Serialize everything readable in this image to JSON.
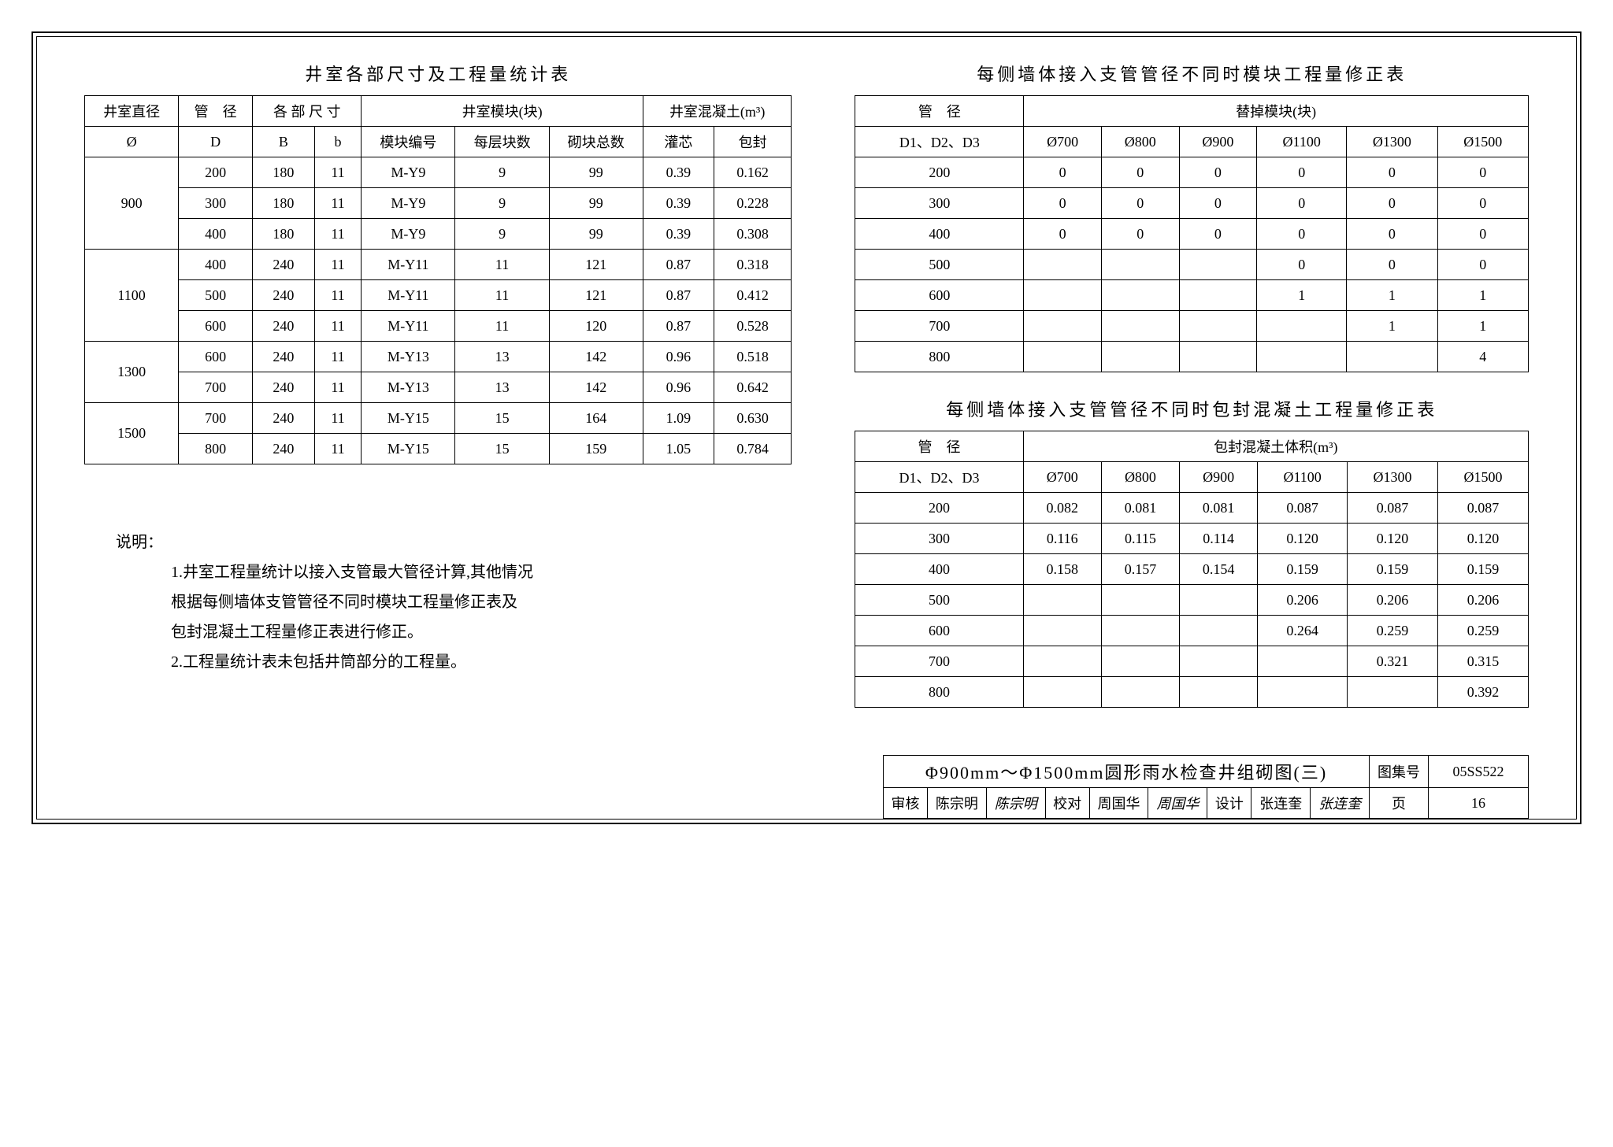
{
  "table1": {
    "title": "井室各部尺寸及工程量统计表",
    "headers": {
      "h1": "井室直径",
      "h2": "管　径",
      "h3": "各 部 尺 寸",
      "h4": "井室模块(块)",
      "h5": "井室混凝土(m³)",
      "r2c1": "Ø",
      "r2c2": "D",
      "r2c3": "B",
      "r2c4": "b",
      "r2c5": "模块编号",
      "r2c6": "每层块数",
      "r2c7": "砌块总数",
      "r2c8": "灌芯",
      "r2c9": "包封"
    },
    "rows": [
      {
        "phi": "900",
        "D": "200",
        "B": "180",
        "b": "11",
        "code": "M-Y9",
        "per": "9",
        "total": "99",
        "gx": "0.39",
        "bf": "0.162",
        "rs": 3
      },
      {
        "phi": "",
        "D": "300",
        "B": "180",
        "b": "11",
        "code": "M-Y9",
        "per": "9",
        "total": "99",
        "gx": "0.39",
        "bf": "0.228"
      },
      {
        "phi": "",
        "D": "400",
        "B": "180",
        "b": "11",
        "code": "M-Y9",
        "per": "9",
        "total": "99",
        "gx": "0.39",
        "bf": "0.308"
      },
      {
        "phi": "1100",
        "D": "400",
        "B": "240",
        "b": "11",
        "code": "M-Y11",
        "per": "11",
        "total": "121",
        "gx": "0.87",
        "bf": "0.318",
        "rs": 3
      },
      {
        "phi": "",
        "D": "500",
        "B": "240",
        "b": "11",
        "code": "M-Y11",
        "per": "11",
        "total": "121",
        "gx": "0.87",
        "bf": "0.412"
      },
      {
        "phi": "",
        "D": "600",
        "B": "240",
        "b": "11",
        "code": "M-Y11",
        "per": "11",
        "total": "120",
        "gx": "0.87",
        "bf": "0.528"
      },
      {
        "phi": "1300",
        "D": "600",
        "B": "240",
        "b": "11",
        "code": "M-Y13",
        "per": "13",
        "total": "142",
        "gx": "0.96",
        "bf": "0.518",
        "rs": 2
      },
      {
        "phi": "",
        "D": "700",
        "B": "240",
        "b": "11",
        "code": "M-Y13",
        "per": "13",
        "total": "142",
        "gx": "0.96",
        "bf": "0.642"
      },
      {
        "phi": "1500",
        "D": "700",
        "B": "240",
        "b": "11",
        "code": "M-Y15",
        "per": "15",
        "total": "164",
        "gx": "1.09",
        "bf": "0.630",
        "rs": 2
      },
      {
        "phi": "",
        "D": "800",
        "B": "240",
        "b": "11",
        "code": "M-Y15",
        "per": "15",
        "total": "159",
        "gx": "1.05",
        "bf": "0.784"
      }
    ]
  },
  "table2": {
    "title": "每侧墙体接入支管管径不同时模块工程量修正表",
    "headers": {
      "h1": "管　径",
      "h2": "替掉模块(块)",
      "sub": "D1、D2、D3",
      "cols": [
        "Ø700",
        "Ø800",
        "Ø900",
        "Ø1100",
        "Ø1300",
        "Ø1500"
      ]
    },
    "rows": [
      {
        "d": "200",
        "v": [
          "0",
          "0",
          "0",
          "0",
          "0",
          "0"
        ]
      },
      {
        "d": "300",
        "v": [
          "0",
          "0",
          "0",
          "0",
          "0",
          "0"
        ]
      },
      {
        "d": "400",
        "v": [
          "0",
          "0",
          "0",
          "0",
          "0",
          "0"
        ]
      },
      {
        "d": "500",
        "v": [
          "",
          "",
          "",
          "0",
          "0",
          "0"
        ]
      },
      {
        "d": "600",
        "v": [
          "",
          "",
          "",
          "1",
          "1",
          "1"
        ]
      },
      {
        "d": "700",
        "v": [
          "",
          "",
          "",
          "",
          "1",
          "1"
        ]
      },
      {
        "d": "800",
        "v": [
          "",
          "",
          "",
          "",
          "",
          "4"
        ]
      }
    ]
  },
  "table3": {
    "title": "每侧墙体接入支管管径不同时包封混凝土工程量修正表",
    "headers": {
      "h1": "管　径",
      "h2": "包封混凝土体积(m³)",
      "sub": "D1、D2、D3",
      "cols": [
        "Ø700",
        "Ø800",
        "Ø900",
        "Ø1100",
        "Ø1300",
        "Ø1500"
      ]
    },
    "rows": [
      {
        "d": "200",
        "v": [
          "0.082",
          "0.081",
          "0.081",
          "0.087",
          "0.087",
          "0.087"
        ]
      },
      {
        "d": "300",
        "v": [
          "0.116",
          "0.115",
          "0.114",
          "0.120",
          "0.120",
          "0.120"
        ]
      },
      {
        "d": "400",
        "v": [
          "0.158",
          "0.157",
          "0.154",
          "0.159",
          "0.159",
          "0.159"
        ]
      },
      {
        "d": "500",
        "v": [
          "",
          "",
          "",
          "0.206",
          "0.206",
          "0.206"
        ]
      },
      {
        "d": "600",
        "v": [
          "",
          "",
          "",
          "0.264",
          "0.259",
          "0.259"
        ]
      },
      {
        "d": "700",
        "v": [
          "",
          "",
          "",
          "",
          "0.321",
          "0.315"
        ]
      },
      {
        "d": "800",
        "v": [
          "",
          "",
          "",
          "",
          "",
          "0.392"
        ]
      }
    ]
  },
  "notes": {
    "label": "说明：",
    "n1": "1.井室工程量统计以接入支管最大管径计算,其他情况",
    "n1b": "根据每侧墙体支管管径不同时模块工程量修正表及",
    "n1c": "包封混凝土工程量修正表进行修正。",
    "n2": "2.工程量统计表未包括井筒部分的工程量。"
  },
  "titleblock": {
    "main": "Φ900mm～Φ1500mm圆形雨水检查井组砌图(三)",
    "tujihao_label": "图集号",
    "tujihao": "05SS522",
    "shenhe_label": "审核",
    "shenhe": "陈宗明",
    "shenhe_sig": "陈宗明",
    "jiaodui_label": "校对",
    "jiaodui": "周国华",
    "jiaodui_sig": "周国华",
    "sheji_label": "设计",
    "sheji": "张连奎",
    "sheji_sig": "张连奎",
    "ye_label": "页",
    "ye": "16"
  }
}
